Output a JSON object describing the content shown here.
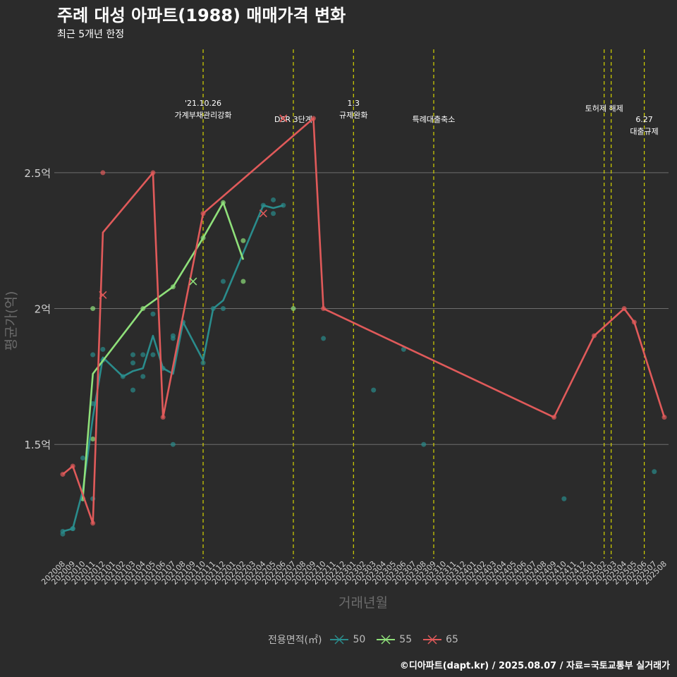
{
  "header": {
    "title": "주례 대성 아파트(1988) 매매가격 변화",
    "subtitle": "최근 5개년 한정"
  },
  "caption": "©디아파트(dapt.kr) / 2025.08.07 / 자료=국토교통부 실거래가",
  "colors": {
    "background": "#2b2b2b",
    "grid": "#6e6e6e",
    "vline": "#d4d400",
    "annotation": "#ffffff",
    "axis_text": "#cfcfcf",
    "s50": "#2a8c8c",
    "s55": "#8fe07a",
    "s65": "#e05a5a"
  },
  "chart_data": {
    "type": "line",
    "title": "주례 대성 아파트(1988) 매매가격 변화",
    "subtitle": "최근 5개년 한정",
    "xlabel": "거래년월",
    "ylabel": "평균가(억)",
    "ylim": [
      1.08,
      2.98
    ],
    "y_ticks": [
      {
        "value": 1.5,
        "label": "1.5억"
      },
      {
        "value": 2.0,
        "label": "2억"
      },
      {
        "value": 2.5,
        "label": "2.5억"
      }
    ],
    "x_start": "2020-08",
    "x_end": "2025-08",
    "x_ticks": [
      "202008",
      "202009",
      "202010",
      "202011",
      "202012",
      "202101",
      "202102",
      "202103",
      "202104",
      "202105",
      "202106",
      "202107",
      "202108",
      "202109",
      "202110",
      "202111",
      "202112",
      "202201",
      "202202",
      "202203",
      "202204",
      "202205",
      "202206",
      "202207",
      "202208",
      "202209",
      "202210",
      "202211",
      "202212",
      "202301",
      "202302",
      "202303",
      "202304",
      "202305",
      "202306",
      "202307",
      "202308",
      "202309",
      "202310",
      "202311",
      "202312",
      "202401",
      "202402",
      "202403",
      "202404",
      "202405",
      "202406",
      "202407",
      "202408",
      "202409",
      "202410",
      "202411",
      "202412",
      "202501",
      "202502",
      "202503",
      "202504",
      "202505",
      "202506",
      "202507",
      "202508"
    ],
    "legend_title": "전용면적(㎡)",
    "series": [
      {
        "name": "50",
        "color": "#2a8c8c",
        "line": [
          [
            0,
            1.18
          ],
          [
            1,
            1.19
          ],
          [
            2,
            1.33
          ],
          [
            3,
            1.6
          ],
          [
            4,
            1.82
          ],
          [
            6,
            1.75
          ],
          [
            7,
            1.77
          ],
          [
            8,
            1.78
          ],
          [
            9,
            1.9
          ],
          [
            10,
            1.78
          ],
          [
            11,
            1.76
          ],
          [
            12,
            1.95
          ],
          [
            14,
            1.81
          ],
          [
            15,
            2.0
          ],
          [
            16,
            2.03
          ],
          [
            20,
            2.38
          ],
          [
            21,
            2.37
          ],
          [
            22,
            2.38
          ]
        ],
        "points": [
          [
            0,
            1.17
          ],
          [
            0,
            1.18
          ],
          [
            1,
            1.19
          ],
          [
            1,
            1.19
          ],
          [
            2,
            1.3
          ],
          [
            2,
            1.45
          ],
          [
            3,
            1.3
          ],
          [
            3,
            1.65
          ],
          [
            3,
            1.83
          ],
          [
            4,
            1.81
          ],
          [
            4,
            1.85
          ],
          [
            6,
            1.75
          ],
          [
            7,
            1.7
          ],
          [
            7,
            1.8
          ],
          [
            7,
            1.83
          ],
          [
            8,
            1.75
          ],
          [
            8,
            1.83
          ],
          [
            9,
            1.83
          ],
          [
            9,
            1.98
          ],
          [
            10,
            1.78
          ],
          [
            11,
            1.5
          ],
          [
            11,
            1.89
          ],
          [
            11,
            1.9
          ],
          [
            12,
            1.95
          ],
          [
            14,
            1.8
          ],
          [
            15,
            2.0
          ],
          [
            16,
            2.0
          ],
          [
            16,
            2.1
          ],
          [
            20,
            2.38
          ],
          [
            21,
            2.35
          ],
          [
            21,
            2.4
          ],
          [
            22,
            2.38
          ],
          [
            26,
            1.89
          ],
          [
            31,
            1.7
          ],
          [
            34,
            1.85
          ],
          [
            36,
            1.5
          ],
          [
            50,
            1.3
          ],
          [
            59,
            1.4
          ]
        ],
        "cross_points": []
      },
      {
        "name": "55",
        "color": "#8fe07a",
        "line": [
          [
            2,
            1.3
          ],
          [
            3,
            1.76
          ],
          [
            8,
            2.0
          ],
          [
            11,
            2.08
          ],
          [
            14,
            2.26
          ],
          [
            16,
            2.39
          ],
          [
            18,
            2.18
          ]
        ],
        "points": [
          [
            2,
            1.3
          ],
          [
            3,
            1.52
          ],
          [
            3,
            2.0
          ],
          [
            8,
            2.0
          ],
          [
            11,
            2.08
          ],
          [
            14,
            2.26
          ],
          [
            16,
            2.39
          ],
          [
            18,
            2.1
          ],
          [
            18,
            2.25
          ],
          [
            23,
            2.0
          ]
        ],
        "cross_points": [
          [
            13,
            2.1
          ]
        ]
      },
      {
        "name": "65",
        "color": "#e05a5a",
        "line": [
          [
            0,
            1.39
          ],
          [
            1,
            1.42
          ],
          [
            3,
            1.21
          ],
          [
            4,
            2.28
          ],
          [
            9,
            2.5
          ],
          [
            10,
            1.6
          ],
          [
            14,
            2.35
          ],
          [
            25,
            2.7
          ],
          [
            26,
            2.0
          ],
          [
            49,
            1.6
          ],
          [
            53,
            1.9
          ],
          [
            56,
            2.0
          ],
          [
            57,
            1.95
          ],
          [
            60,
            1.6
          ]
        ],
        "points": [
          [
            0,
            1.39
          ],
          [
            1,
            1.42
          ],
          [
            3,
            1.21
          ],
          [
            4,
            2.5
          ],
          [
            9,
            2.5
          ],
          [
            10,
            1.6
          ],
          [
            14,
            2.35
          ],
          [
            25,
            2.7
          ],
          [
            26,
            2.0
          ],
          [
            49,
            1.6
          ],
          [
            53,
            1.9
          ],
          [
            56,
            2.0
          ],
          [
            57,
            1.95
          ],
          [
            60,
            1.6
          ]
        ],
        "cross_points": [
          [
            4,
            2.05
          ],
          [
            20,
            2.35
          ],
          [
            22,
            2.7
          ]
        ]
      }
    ],
    "annotations": [
      {
        "x": 14.0,
        "lines": [
          "'21.10.26",
          "가계부채관리강화"
        ],
        "top_line_y": 2.76
      },
      {
        "x": 23.0,
        "lines": [
          "DSR 3단계"
        ],
        "top_line_y": 2.7
      },
      {
        "x": 29.0,
        "lines": [
          "1.3",
          "규제완화"
        ],
        "top_line_y": 2.76
      },
      {
        "x": 37.0,
        "lines": [
          "특례대출축소"
        ],
        "top_line_y": 2.7
      },
      {
        "x": 54.0,
        "lines": [
          "토허제 해제"
        ],
        "top_line_y": 2.74
      },
      {
        "x": 58.0,
        "lines": [
          "6.27",
          "대출규제"
        ],
        "top_line_y": 2.7
      }
    ],
    "vlines": [
      14.0,
      23.0,
      29.0,
      37.0,
      54.0,
      54.7,
      58.0
    ]
  }
}
